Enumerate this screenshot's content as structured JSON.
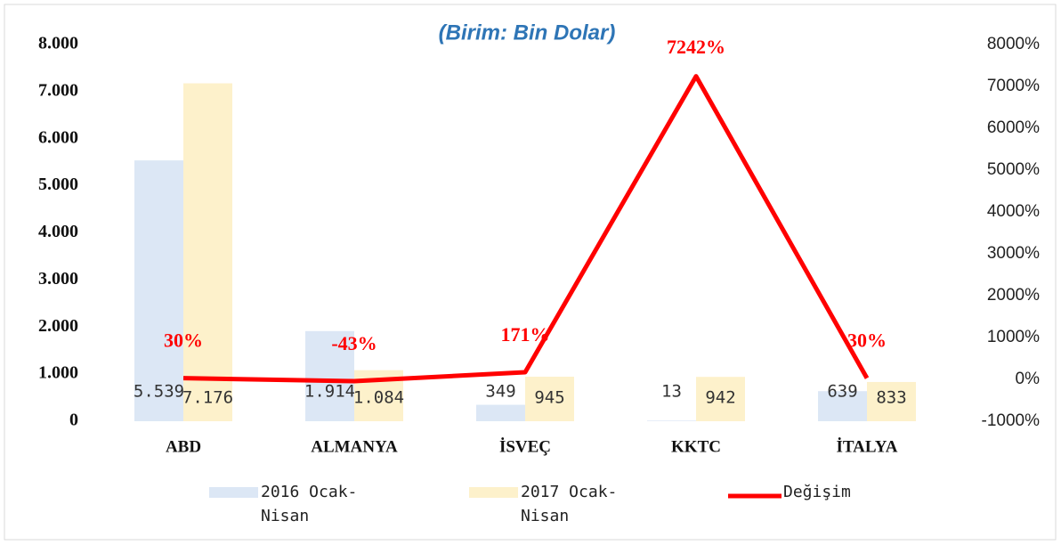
{
  "chart_data": {
    "type": "bar-line",
    "title": "(Birim: Bin Dolar)",
    "categories": [
      "ABD",
      "ALMANYA",
      "İSVEÇ",
      "KKTC",
      "İTALYA"
    ],
    "series": [
      {
        "name": "2016 Ocak-Nisan",
        "type": "bar",
        "color": "#dce7f5",
        "values": [
          5539,
          1914,
          349,
          13,
          639
        ],
        "value_labels": [
          "5.539",
          "1.914",
          "349",
          "13",
          "639"
        ]
      },
      {
        "name": "2017 Ocak-Nisan",
        "type": "bar",
        "color": "#fdf1cb",
        "values": [
          7176,
          1084,
          945,
          942,
          833
        ],
        "value_labels": [
          "7.176",
          "1.084",
          "945",
          "942",
          "833"
        ]
      },
      {
        "name": "Değişim",
        "type": "line",
        "axis": "y2",
        "color": "#ff0000",
        "values": [
          30,
          -43,
          171,
          7242,
          30
        ],
        "value_labels": [
          "30%",
          "-43%",
          "171%",
          "7242%",
          "30%"
        ]
      }
    ],
    "ylim": [
      0,
      8000
    ],
    "yticks": [
      0,
      {
        "value": 1000,
        "label": "1.000"
      },
      {
        "value": 2000,
        "label": "2.000"
      },
      {
        "value": 3000,
        "label": "3.000"
      },
      {
        "value": 4000,
        "label": "4.000"
      },
      {
        "value": 5000,
        "label": "5.000"
      },
      {
        "value": 6000,
        "label": "6.000"
      },
      {
        "value": 7000,
        "label": "7.000"
      },
      {
        "value": 8000,
        "label": "8.000"
      }
    ],
    "y2lim": [
      -1000,
      8000
    ],
    "y2ticks": [
      {
        "value": -1000,
        "label": "-1000%"
      },
      {
        "value": 0,
        "label": "0%"
      },
      {
        "value": 1000,
        "label": "1000%"
      },
      {
        "value": 2000,
        "label": "2000%"
      },
      {
        "value": 3000,
        "label": "3000%"
      },
      {
        "value": 4000,
        "label": "4000%"
      },
      {
        "value": 5000,
        "label": "5000%"
      },
      {
        "value": 6000,
        "label": "6000%"
      },
      {
        "value": 7000,
        "label": "7000%"
      },
      {
        "value": 8000,
        "label": "8000%"
      }
    ],
    "legend": "bottom"
  }
}
